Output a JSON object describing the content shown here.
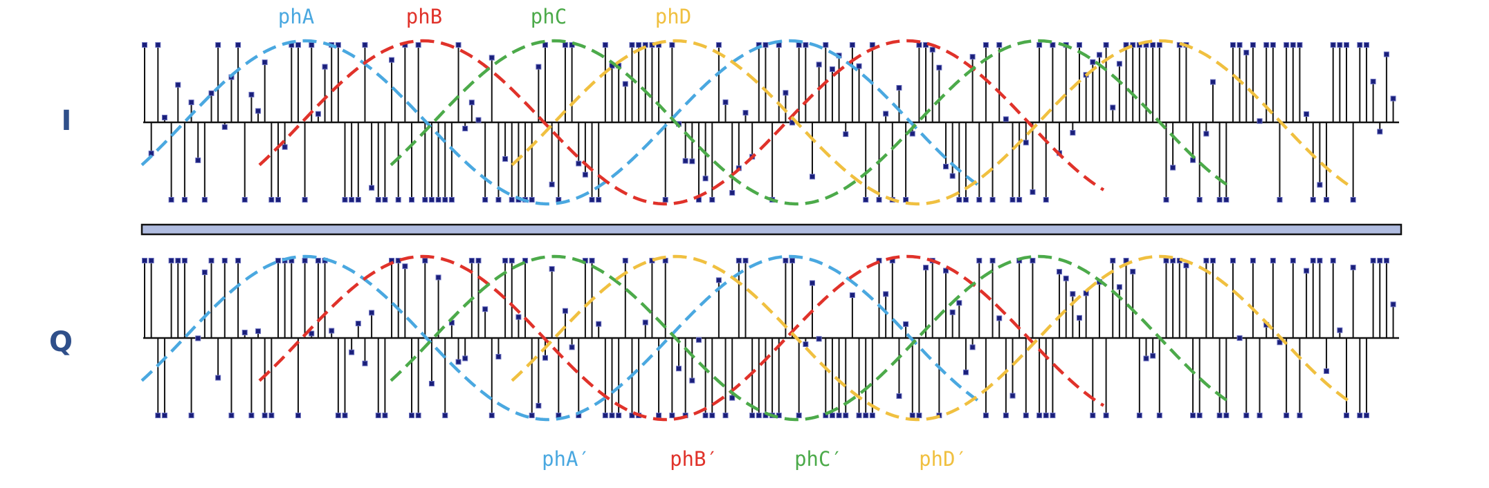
{
  "diagram": {
    "top_panel": {
      "label": "I",
      "phase_labels": [
        "phA",
        "phB",
        "phC",
        "phD"
      ]
    },
    "bottom_panel": {
      "label": "Q",
      "phase_labels": [
        "phA′",
        "phB′",
        "phC′",
        "phD′"
      ]
    },
    "colors": {
      "phA": "#4aa8e0",
      "phB": "#e0322a",
      "phC": "#4caa4a",
      "phD": "#f0c040",
      "stem": "#111111",
      "marker": "#1a1f7a",
      "panel_label": "#2f4f8a",
      "separator_fill": "#b0bce0",
      "separator_edge": "#111111"
    }
  }
}
